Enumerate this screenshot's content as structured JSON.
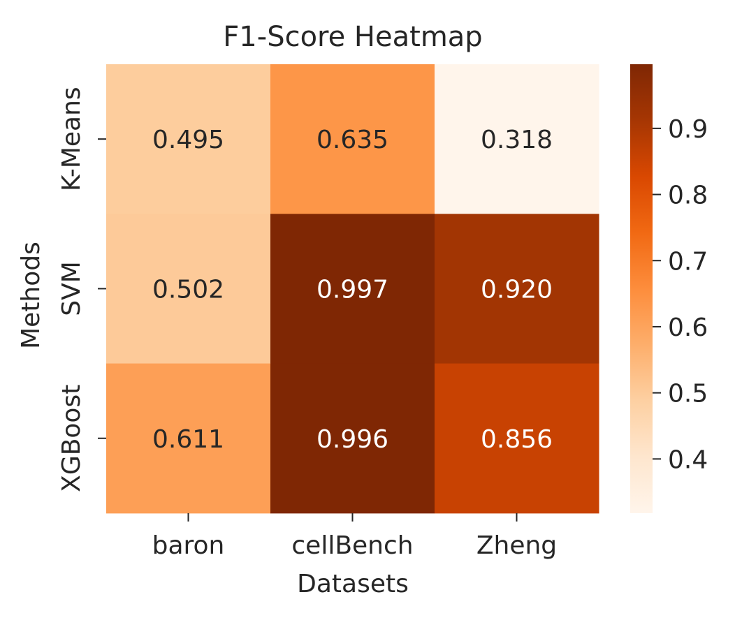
{
  "chart_data": {
    "type": "heatmap",
    "title": "F1-Score Heatmap",
    "xlabel": "Datasets",
    "ylabel": "Methods",
    "columns": [
      "baron",
      "cellBench",
      "Zheng"
    ],
    "rows": [
      "K-Means",
      "SVM",
      "XGBoost"
    ],
    "values": [
      [
        0.495,
        0.635,
        0.318
      ],
      [
        0.502,
        0.997,
        0.92
      ],
      [
        0.611,
        0.996,
        0.856
      ]
    ],
    "value_format": "3 decimals",
    "colormap": "Oranges",
    "vmin": 0.318,
    "vmax": 0.997,
    "colorbar_ticks": [
      "0.4",
      "0.5",
      "0.6",
      "0.7",
      "0.8",
      "0.9"
    ],
    "colorbar_tick_values": [
      0.4,
      0.5,
      0.6,
      0.7,
      0.8,
      0.9
    ],
    "colorbar_position": "right",
    "colors": {
      "oranges": [
        "#fff5eb",
        "#fee6ce",
        "#fdd0a2",
        "#fdae6b",
        "#fd8d3c",
        "#f16913",
        "#d94801",
        "#a63603",
        "#7f2704"
      ],
      "text_dark": "#262626",
      "text_light": "#ffffff"
    }
  }
}
